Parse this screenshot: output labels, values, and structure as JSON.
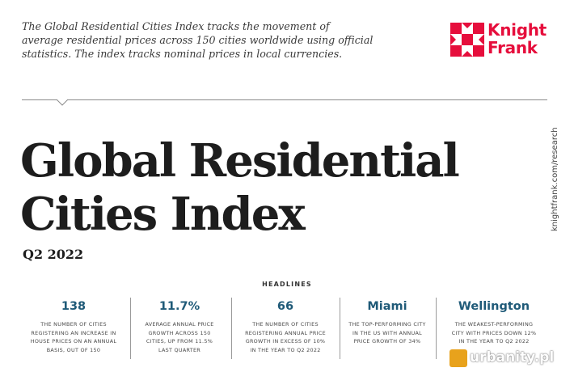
{
  "intro": {
    "lines": [
      "The Global Residential Cities Index tracks the movement of",
      "average residential prices across 150 cities worldwide using official",
      "statistics. The index tracks nominal prices in local currencies."
    ]
  },
  "logo": {
    "line1": "Knight",
    "line2": "Frank",
    "color": "#e60e3c"
  },
  "title": {
    "line1": "Global Residential",
    "line2": "Cities Index"
  },
  "quarter": "Q2 2022",
  "side_url": "knightfrank.com/research",
  "headlines_label": "HEADLINES",
  "stats": [
    {
      "value": "138",
      "desc": [
        "THE NUMBER OF CITIES",
        "REGISTERING AN INCREASE IN",
        "HOUSE PRICES ON AN ANNUAL",
        "BASIS, OUT OF 150"
      ]
    },
    {
      "value": "11.7%",
      "desc": [
        "AVERAGE ANNUAL PRICE",
        "GROWTH ACROSS 150",
        "CITIES, UP FROM 11.5%",
        "LAST QUARTER"
      ]
    },
    {
      "value": "66",
      "desc": [
        "THE NUMBER OF CITIES",
        "REGISTERING ANNUAL PRICE",
        "GROWTH IN EXCESS OF 10%",
        "IN THE YEAR TO Q2 2022"
      ]
    },
    {
      "value": "Miami",
      "desc": [
        "THE TOP-PERFORMING CITY",
        "IN THE US WITH ANNUAL",
        "PRICE GROWTH OF 34%"
      ]
    },
    {
      "value": "Wellington",
      "desc": [
        "THE WEAKEST-PERFORMING",
        "CITY WITH PRICES DOWN 12%",
        "IN THE YEAR TO Q2 2022"
      ]
    }
  ],
  "watermark": {
    "text": "urbanity.pl",
    "accent": "#e8a21c"
  },
  "colors": {
    "accent_blue": "#1f5a78",
    "brand_red": "#e60e3c"
  }
}
